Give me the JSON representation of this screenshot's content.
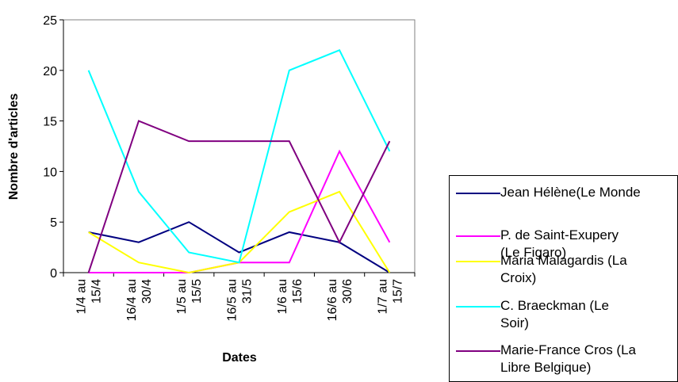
{
  "chart_data": {
    "type": "line",
    "xlabel": "Dates",
    "ylabel": "Nombre d'articles",
    "ylim": [
      0,
      25
    ],
    "yticks": [
      0,
      5,
      10,
      15,
      20,
      25
    ],
    "categories": [
      [
        "1/4 au",
        "15/4"
      ],
      [
        "16/4 au",
        "30/4"
      ],
      [
        "1/5 au",
        "15/5"
      ],
      [
        "16/5 au",
        "31/5"
      ],
      [
        "1/6 au",
        "15/6"
      ],
      [
        "16/6 au",
        "30/6"
      ],
      [
        "1/7 au",
        "15/7"
      ]
    ],
    "grid": false,
    "legend_position": "right",
    "series": [
      {
        "name": "Jean Hélène(Le Monde",
        "color": "#000080",
        "values": [
          4,
          3,
          5,
          2,
          4,
          3,
          0
        ]
      },
      {
        "name": "P. de Saint-Exupery (Le Figaro)",
        "color": "#FF00FF",
        "values": [
          0,
          0,
          0,
          1,
          1,
          12,
          3
        ]
      },
      {
        "name": "Maria Malagardis (La Croix)",
        "color": "#FFFF00",
        "values": [
          4,
          1,
          0,
          1,
          6,
          8,
          0
        ]
      },
      {
        "name": "C. Braeckman (Le Soir)",
        "color": "#00FFFF",
        "values": [
          20,
          8,
          2,
          1,
          20,
          22,
          12
        ]
      },
      {
        "name": "Marie-France Cros (La Libre Belgique)",
        "color": "#800080",
        "values": [
          0,
          15,
          13,
          13,
          13,
          3,
          13
        ]
      }
    ]
  },
  "legend": {
    "items": [
      {
        "line1": "Jean Hélène(Le Monde",
        "line2": ""
      },
      {
        "line1": "P. de Saint-Exupery",
        "line2": "(Le Figaro)"
      },
      {
        "line1": "Maria Malagardis (La",
        "line2": "Croix)"
      },
      {
        "line1": "C. Braeckman (Le",
        "line2": "Soir)"
      },
      {
        "line1": "Marie-France Cros (La",
        "line2": "Libre Belgique)"
      }
    ]
  }
}
